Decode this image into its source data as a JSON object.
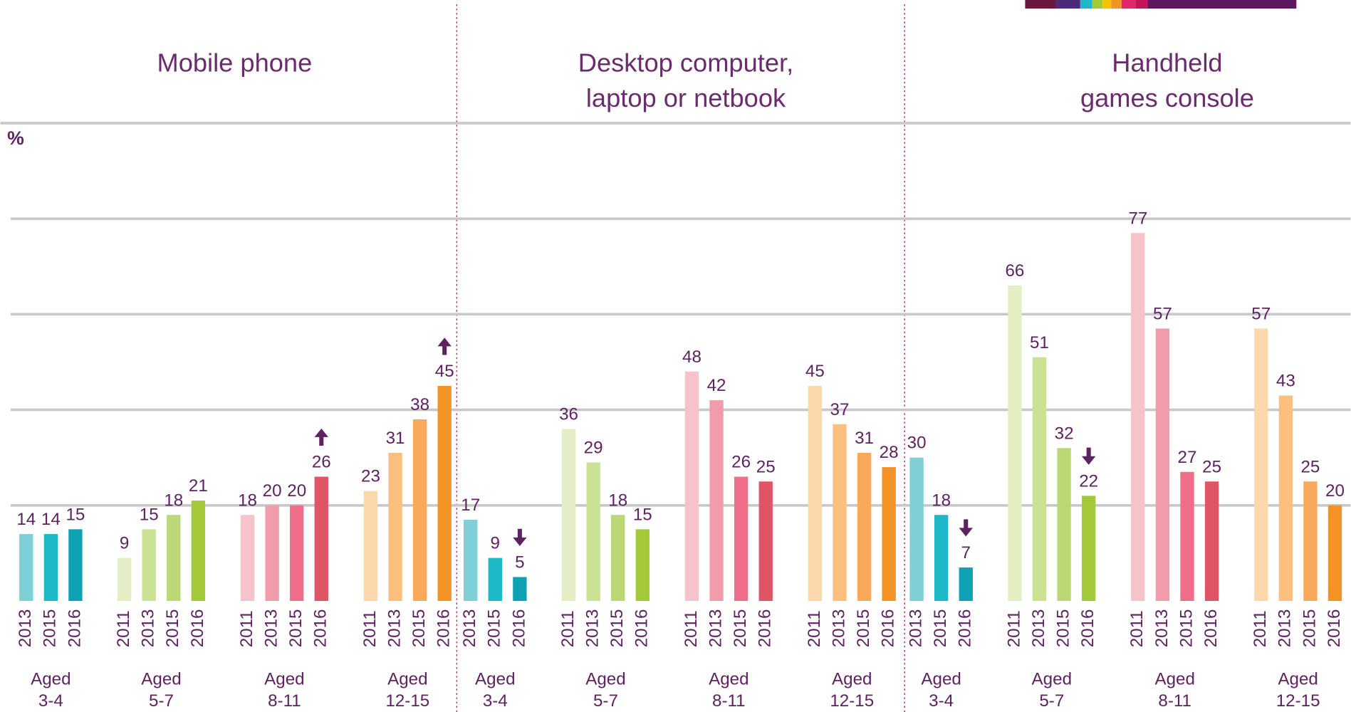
{
  "chart_data": [
    {
      "type": "bar",
      "title": [
        "Mobile phone"
      ],
      "y_label": "%",
      "ylim": [
        0,
        100
      ],
      "yticks": [
        20,
        40,
        60,
        80,
        100
      ],
      "grid": true,
      "groups": [
        {
          "label": [
            "Aged",
            "3-4"
          ],
          "categories": [
            "2013",
            "2015",
            "2016"
          ],
          "values": [
            14,
            14,
            15
          ],
          "colors": [
            "#7ecfd6",
            "#1fb8c9",
            "#0ea2b4"
          ]
        },
        {
          "label": [
            "Aged",
            "5-7"
          ],
          "categories": [
            "2011",
            "2013",
            "2015",
            "2016"
          ],
          "values": [
            9,
            15,
            18,
            21
          ],
          "colors": [
            "#e3eec4",
            "#cbe193",
            "#bcd776",
            "#a3c93a"
          ]
        },
        {
          "label": [
            "Aged",
            "8-11"
          ],
          "categories": [
            "2011",
            "2013",
            "2015",
            "2016"
          ],
          "values": [
            18,
            20,
            20,
            26
          ],
          "colors": [
            "#f7c3cb",
            "#f29bab",
            "#ef6f8a",
            "#e05566"
          ],
          "change": "up"
        },
        {
          "label": [
            "Aged",
            "12-15"
          ],
          "categories": [
            "2011",
            "2013",
            "2015",
            "2016"
          ],
          "values": [
            23,
            31,
            38,
            45
          ],
          "colors": [
            "#fdd8ad",
            "#fbc07f",
            "#f8a95b",
            "#f39325"
          ],
          "change": "up"
        }
      ]
    },
    {
      "type": "bar",
      "title": [
        "Desktop computer,",
        "laptop or netbook"
      ],
      "ylim": [
        0,
        100
      ],
      "yticks": [
        20,
        40,
        60,
        80,
        100
      ],
      "grid": true,
      "groups": [
        {
          "label": [
            "Aged",
            "3-4"
          ],
          "categories": [
            "2013",
            "2015",
            "2016"
          ],
          "values": [
            17,
            9,
            5
          ],
          "colors": [
            "#7ecfd6",
            "#1fb8c9",
            "#0ea2b4"
          ],
          "change": "down"
        },
        {
          "label": [
            "Aged",
            "5-7"
          ],
          "categories": [
            "2011",
            "2013",
            "2015",
            "2016"
          ],
          "values": [
            36,
            29,
            18,
            15
          ],
          "colors": [
            "#e3eec4",
            "#cbe193",
            "#bcd776",
            "#a3c93a"
          ]
        },
        {
          "label": [
            "Aged",
            "8-11"
          ],
          "categories": [
            "2011",
            "2013",
            "2015",
            "2016"
          ],
          "values": [
            48,
            42,
            26,
            25
          ],
          "colors": [
            "#f7c3cb",
            "#f29bab",
            "#ef6f8a",
            "#e05566"
          ]
        },
        {
          "label": [
            "Aged",
            "12-15"
          ],
          "categories": [
            "2011",
            "2013",
            "2015",
            "2016"
          ],
          "values": [
            45,
            37,
            31,
            28
          ],
          "colors": [
            "#fdd8ad",
            "#fbc07f",
            "#f8a95b",
            "#f39325"
          ]
        }
      ]
    },
    {
      "type": "bar",
      "title": [
        "Handheld",
        "games console"
      ],
      "ylim": [
        0,
        100
      ],
      "yticks": [
        20,
        40,
        60,
        80,
        100
      ],
      "grid": true,
      "groups": [
        {
          "label": [
            "Aged",
            "3-4"
          ],
          "categories": [
            "2013",
            "2015",
            "2016"
          ],
          "values": [
            30,
            18,
            7
          ],
          "colors": [
            "#7ecfd6",
            "#1fb8c9",
            "#0ea2b4"
          ],
          "change": "down"
        },
        {
          "label": [
            "Aged",
            "5-7"
          ],
          "categories": [
            "2011",
            "2013",
            "2015",
            "2016"
          ],
          "values": [
            66,
            51,
            32,
            22
          ],
          "colors": [
            "#e3eec4",
            "#cbe193",
            "#bcd776",
            "#a3c93a"
          ],
          "change": "down"
        },
        {
          "label": [
            "Aged",
            "8-11"
          ],
          "categories": [
            "2011",
            "2013",
            "2015",
            "2016"
          ],
          "values": [
            77,
            57,
            27,
            25
          ],
          "colors": [
            "#f7c3cb",
            "#f29bab",
            "#ef6f8a",
            "#e05566"
          ]
        },
        {
          "label": [
            "Aged",
            "12-15"
          ],
          "categories": [
            "2011",
            "2013",
            "2015",
            "2016"
          ],
          "values": [
            57,
            43,
            25,
            20
          ],
          "colors": [
            "#fdd8ad",
            "#fbc07f",
            "#f8a95b",
            "#f39325"
          ]
        }
      ]
    }
  ]
}
